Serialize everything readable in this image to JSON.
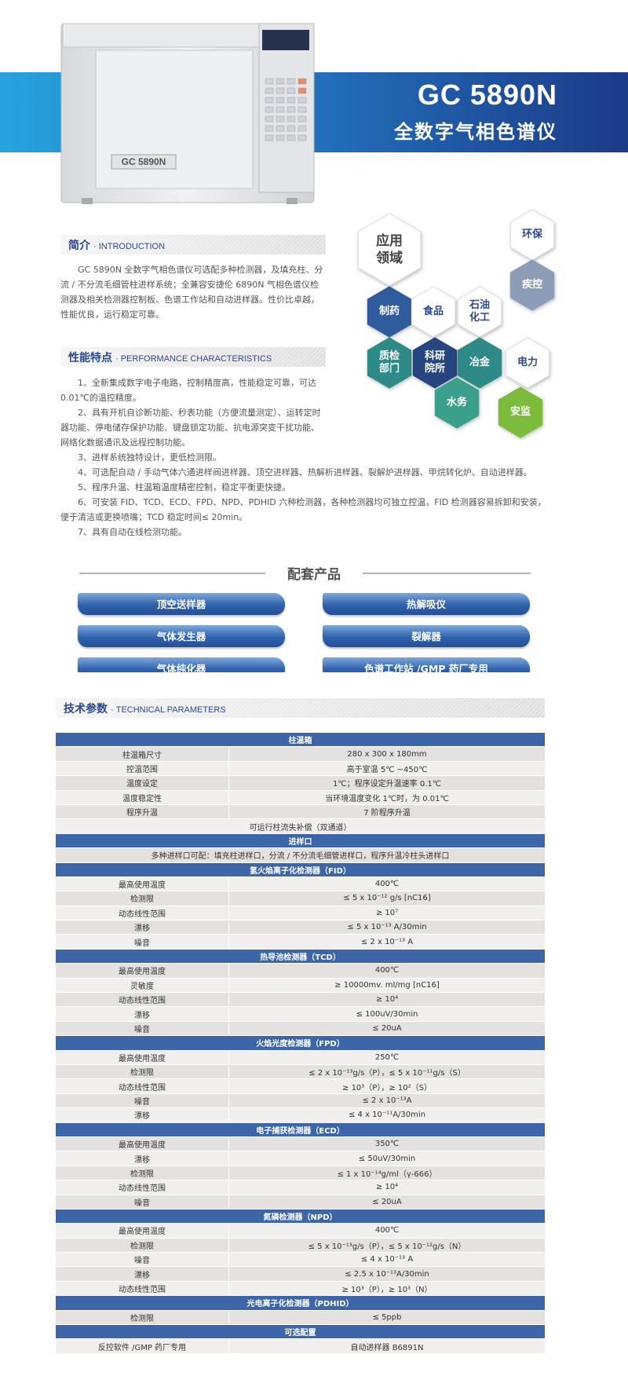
{
  "header": {
    "instrument_label": "GC 5890N",
    "title": "GC 5890N",
    "subtitle": "全数字气相色谱仪"
  },
  "intro": {
    "heading": "简介",
    "heading_en": "· INTRODUCTION",
    "text": "GC 5890N 全数字气相色谱仪可选配多种检测器，及填充柱、分流 / 不分流毛细管柱进样系统；全兼容安捷伦 6890N 气相色谱仪检测器及相关检测器控制板、色谱工作站和自动进样器。性价比卓越，性能优良，运行稳定可靠。"
  },
  "features": {
    "heading": "性能特点",
    "heading_en": "· PERFORMANCE CHARACTERISTICS",
    "items": [
      "1、全新集成数字电子电路，控制精度高，性能稳定可靠，可达 0.01℃的温控精度。",
      "2、具有开机自诊断功能、秒表功能（方便流量测定）、运转定时器功能、停电储存保护功能、键盘锁定功能、抗电源突变干扰功能、网络化数据通讯及远程控制功能。",
      "3、进样系统独特设计，更低检测限。",
      "4、可选配自动 / 手动气体六通进样阀进样器、顶空进样器、热解析进样器、裂解炉进样器、甲烷转化炉、自动进样器。",
      "5、程序升温、柱温箱温度精密控制，稳定平衡更快捷。",
      "6、可安装 FID、TCD、ECD、FPD、NPD、PDHID 六种检测器，各种检测器均可独立控温，FID 检测器容易拆卸和安装，便于清洁或更换喷嘴；TCD 稳定时间≤ 20min。",
      "7、具有自动在线检测功能。"
    ]
  },
  "applications": {
    "title": "应用领域",
    "items": [
      "环保",
      "疾控",
      "制药",
      "食品",
      "石油化工",
      "质检部门",
      "科研院所",
      "冶金",
      "电力",
      "水务",
      "安监"
    ]
  },
  "accessories": {
    "title": "配套产品",
    "items": [
      "顶空送样器",
      "热解吸仪",
      "气体发生器",
      "裂解器",
      "气体纯化器",
      "色谱工作站 /GMP 药厂专用"
    ]
  },
  "tech": {
    "heading": "技术参数",
    "heading_en": "· TECHNICAL PARAMETERS",
    "groups": [
      {
        "title": "柱温箱",
        "rows": [
          [
            "柱温箱尺寸",
            "280 x 300 x 180mm"
          ],
          [
            "控温范围",
            "高于室温 5℃ ~450℃"
          ],
          [
            "温度设定",
            "1℃；程序设定升温速率 0.1℃"
          ],
          [
            "温度稳定性",
            "当环境温度变化 1℃时，为 0.01℃"
          ],
          [
            "程序升温",
            "7 阶程序升温"
          ],
          [
            "可运行柱流失补偿（双通道）"
          ]
        ]
      },
      {
        "title": "进样口",
        "rows": [
          [
            "多种进样口可配：填充柱进样口，分流 / 不分流毛细管进样口，程序升温冷柱头进样口"
          ]
        ]
      },
      {
        "title": "氢火焰离子化检测器（FID）",
        "rows": [
          [
            "最高使用温度",
            "400℃"
          ],
          [
            "检测限",
            "≤ 5 x 10⁻¹² g/s [nC16]"
          ],
          [
            "动态线性范围",
            "≥ 10⁷"
          ],
          [
            "漂移",
            "≤ 5 x 10⁻¹³ A/30min"
          ],
          [
            "噪音",
            "≤ 2 x 10⁻¹³ A"
          ]
        ]
      },
      {
        "title": "热导池检测器（TCD）",
        "rows": [
          [
            "最高使用温度",
            "400℃"
          ],
          [
            "灵敏度",
            "≥ 10000mv. ml/mg [nC16]"
          ],
          [
            "动态线性范围",
            "≥ 10⁴"
          ],
          [
            "漂移",
            "≤ 100uV/30min"
          ],
          [
            "噪音",
            "≤ 20uA"
          ]
        ]
      },
      {
        "title": "火焰光度检测器（FPD）",
        "rows": [
          [
            "最高使用温度",
            "250℃"
          ],
          [
            "检测限",
            "≤ 2 x 10⁻¹³g/s（P），≤ 5 x 10⁻¹¹g/s（S）"
          ],
          [
            "动态线性范围",
            "≥ 10³（P），≥ 10²（S）"
          ],
          [
            "噪音",
            "≤ 2 x 10⁻¹³A"
          ],
          [
            "漂移",
            "≤ 4 x 10⁻¹¹A/30min"
          ]
        ]
      },
      {
        "title": "电子捕获检测器（ECD）",
        "rows": [
          [
            "最高使用温度",
            "350℃"
          ],
          [
            "漂移",
            "≤ 50uV/30min"
          ],
          [
            "检测限",
            "≤ 1 x 10⁻¹⁴g/ml（γ-666）"
          ],
          [
            "动态线性范围",
            "≥ 10⁴"
          ],
          [
            "噪音",
            "≤ 20uA"
          ]
        ]
      },
      {
        "title": "氮磷检测器（NPD）",
        "rows": [
          [
            "最高使用温度",
            "400℃"
          ],
          [
            "检测限",
            "≤ 5 x 10⁻¹³g/s（P），≤ 5 x 10⁻¹²g/s（N）"
          ],
          [
            "噪音",
            "≤ 4 x 10⁻¹³ A"
          ],
          [
            "漂移",
            "≤ 2.5 x 10⁻¹³A/30min"
          ],
          [
            "动态线性范围",
            "≥ 10³（P），≥ 10³（N）"
          ]
        ]
      },
      {
        "title": "光电离子化检测器（PDHID）",
        "rows": [
          [
            "检测限",
            "≤ 5ppb"
          ]
        ]
      },
      {
        "title": "可选配置",
        "rows": [
          [
            "反控软件 /GMP 药厂专用",
            "自动进样器 B6891N"
          ]
        ]
      }
    ]
  }
}
